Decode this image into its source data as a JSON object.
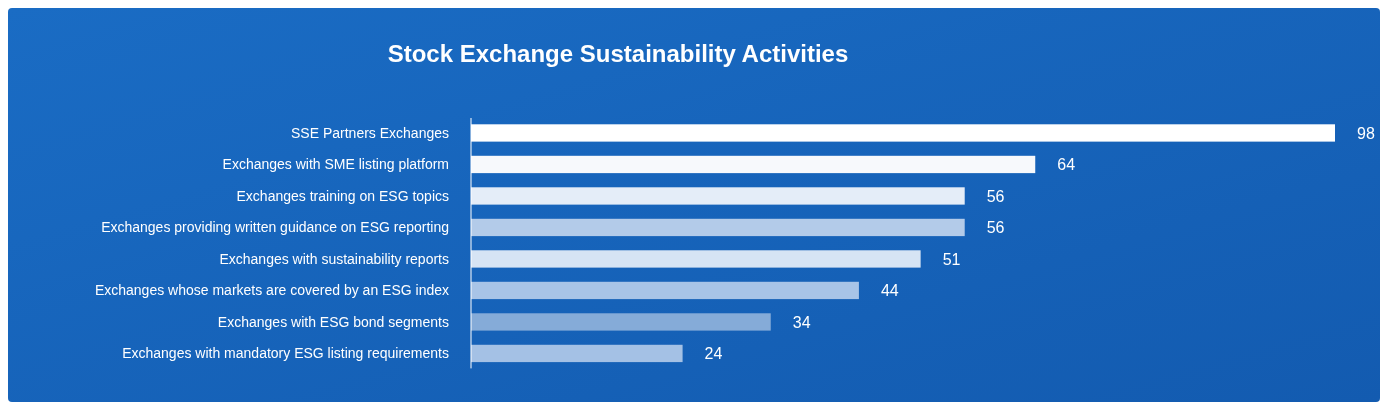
{
  "chart_data": {
    "type": "bar",
    "orientation": "horizontal",
    "title": "Stock Exchange Sustainability Activities",
    "categories": [
      "SSE Partners Exchanges",
      "Exchanges with SME listing platform",
      "Exchanges training on ESG topics",
      "Exchanges providing written guidance on ESG reporting",
      "Exchanges with sustainability reports",
      "Exchanges whose markets are covered by an ESG index",
      "Exchanges with ESG bond segments",
      "Exchanges with mandatory ESG listing requirements"
    ],
    "values": [
      98,
      64,
      56,
      56,
      51,
      44,
      34,
      24
    ],
    "colors": [
      "#ffffff",
      "#f7f9fc",
      "#e4edf8",
      "#b3cbe9",
      "#d6e4f4",
      "#a8c4e7",
      "#85abd8",
      "#a4c1e5"
    ],
    "data_labels": true
  }
}
